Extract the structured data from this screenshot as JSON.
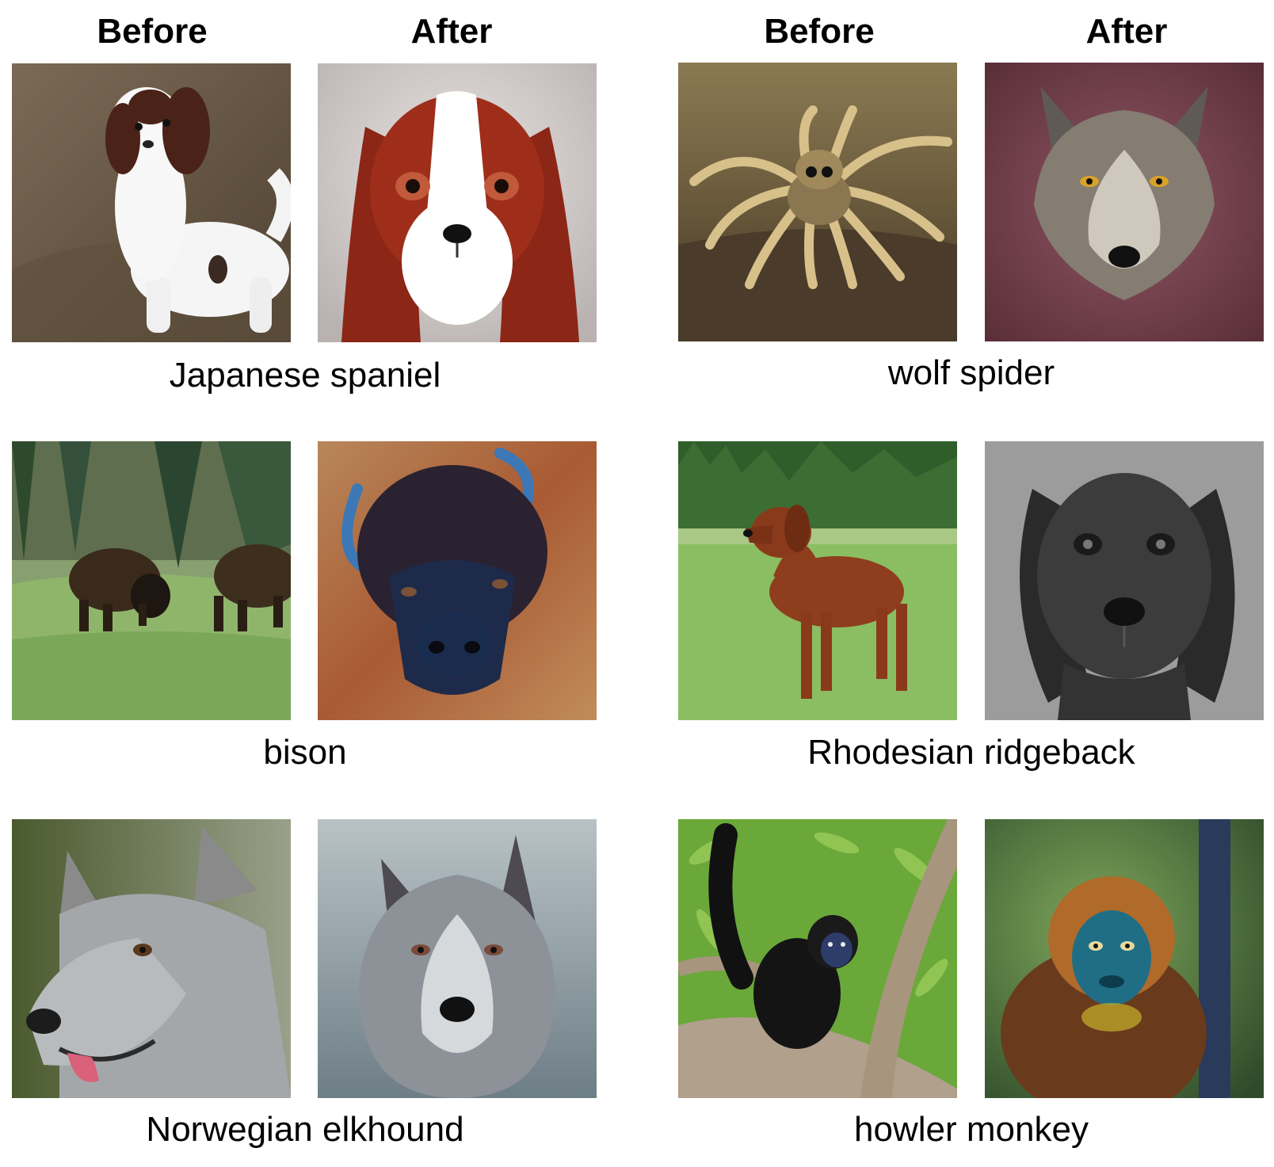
{
  "headers": {
    "left_before": "Before",
    "left_after": "After",
    "right_before": "Before",
    "right_after": "After"
  },
  "pairs": [
    {
      "caption": "Japanese spaniel",
      "before": {
        "subject": "white-and-red spaniel puppy standing on brown ground",
        "icon": "dog-icon"
      },
      "after": {
        "subject": "stylized portrait of a red-and-white spaniel face",
        "icon": "dog-icon"
      }
    },
    {
      "caption": "wolf spider",
      "before": {
        "subject": "hairy tan spider on soil",
        "icon": "spider-icon"
      },
      "after": {
        "subject": "grey wolf face on maroon background",
        "icon": "wolf-icon"
      }
    },
    {
      "caption": "bison",
      "before": {
        "subject": "two bison grazing in a grassy meadow near pine trees",
        "icon": "bison-icon"
      },
      "after": {
        "subject": "painted bison head with blue horns",
        "icon": "bison-icon"
      }
    },
    {
      "caption": "Rhodesian ridgeback",
      "before": {
        "subject": "reddish-brown hound standing on lawn",
        "icon": "dog-icon"
      },
      "after": {
        "subject": "black-and-white drawing of a dog face",
        "icon": "dog-icon"
      }
    },
    {
      "caption": "Norwegian elkhound",
      "before": {
        "subject": "grey dog profile with tongue out",
        "icon": "dog-icon"
      },
      "after": {
        "subject": "grey wolf-like dog portrait",
        "icon": "dog-icon"
      }
    },
    {
      "caption": "howler monkey",
      "before": {
        "subject": "black monkey hanging in a tree",
        "icon": "monkey-icon"
      },
      "after": {
        "subject": "monkey with blue face and orange fur",
        "icon": "monkey-icon"
      }
    }
  ],
  "colors": {
    "background": "#ffffff",
    "text": "#000000"
  }
}
